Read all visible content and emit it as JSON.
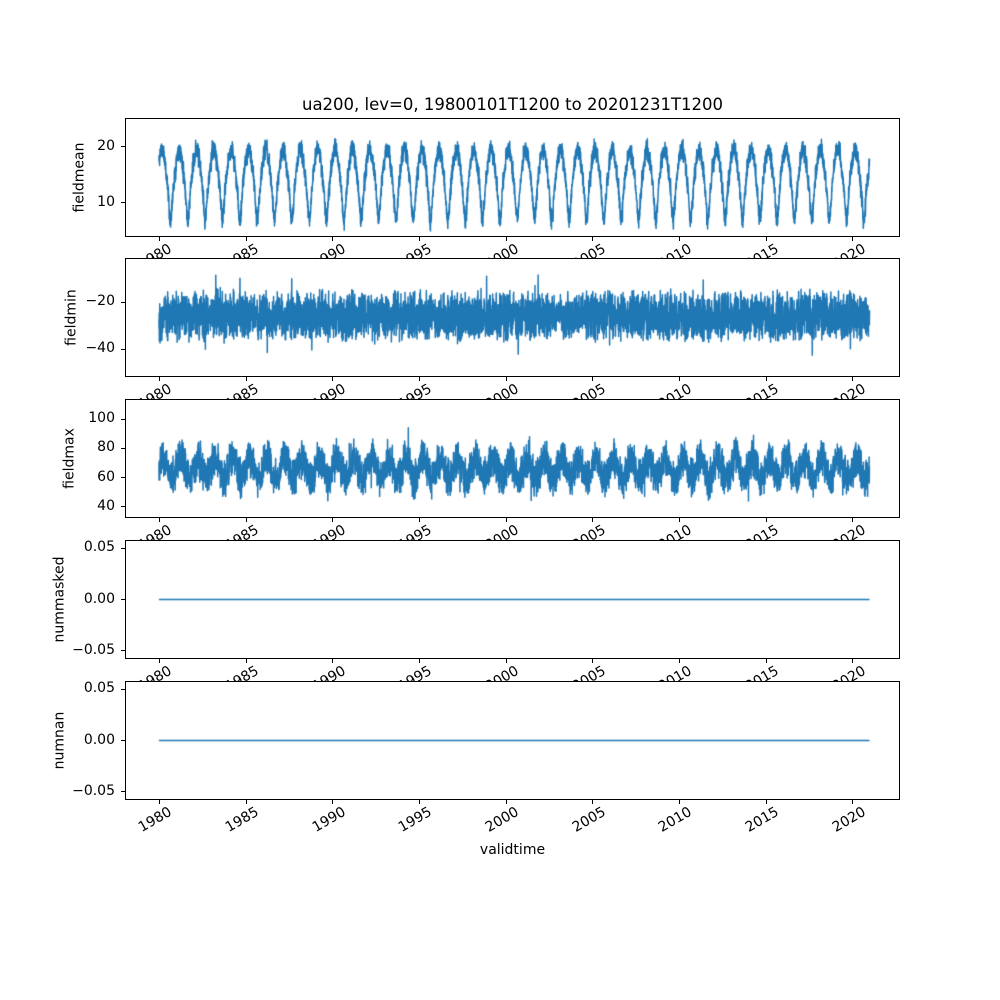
{
  "title": "ua200, lev=0, 19800101T1200 to 20201231T1200",
  "figure": {
    "background": "#ffffff",
    "axes_edge_color": "#000000",
    "line_color": "#1f77b4"
  },
  "x_axis": {
    "label": "validtime",
    "lim": [
      1978.1,
      2022.7
    ],
    "data_range": [
      1980.0,
      2021.0
    ],
    "tick_rotation_deg": 30,
    "ticks": [
      {
        "v": 1980,
        "label": "1980"
      },
      {
        "v": 1985,
        "label": "1985"
      },
      {
        "v": 1990,
        "label": "1990"
      },
      {
        "v": 1995,
        "label": "1995"
      },
      {
        "v": 2000,
        "label": "2000"
      },
      {
        "v": 2005,
        "label": "2005"
      },
      {
        "v": 2010,
        "label": "2010"
      },
      {
        "v": 2015,
        "label": "2015"
      },
      {
        "v": 2020,
        "label": "2020"
      }
    ]
  },
  "chart_data": [
    {
      "type": "line",
      "ylabel": "fieldmean",
      "ylim": [
        4.1,
        25.0
      ],
      "yticks": [
        {
          "v": 20,
          "label": "20"
        },
        {
          "v": 10,
          "label": "10"
        }
      ],
      "grid": false,
      "series": [
        {
          "name": "fieldmean",
          "color": "#1f77b4",
          "linewidth": 1.5,
          "observed": {
            "min": 5,
            "max": 24,
            "typical_peak": 19.5,
            "typical_trough": 7,
            "period_years": 1
          },
          "synthesis": {
            "kind": "seasonal",
            "base": 15.3,
            "amp": 4.3,
            "dip": 4.0,
            "noise": 1.25,
            "clip": [
              4.8,
              24.3
            ],
            "seed": 11,
            "points": 5200
          }
        }
      ]
    },
    {
      "type": "line",
      "ylabel": "fieldmin",
      "ylim": [
        -51.5,
        -1.5
      ],
      "yticks": [
        {
          "v": -20,
          "label": "−20"
        },
        {
          "v": -40,
          "label": "−40"
        }
      ],
      "grid": false,
      "series": [
        {
          "name": "fieldmin",
          "color": "#1f77b4",
          "linewidth": 1.5,
          "observed": {
            "min": -50,
            "max": -4,
            "typical_band": [
              -40,
              -13
            ]
          },
          "synthesis": {
            "kind": "noise",
            "base": -26,
            "spread": 12,
            "spike_prob": 0.02,
            "spike_mag": 11,
            "clip": [
              -50.5,
              -4.2
            ],
            "seed": 22,
            "points": 5200
          }
        }
      ]
    },
    {
      "type": "line",
      "ylabel": "fieldmax",
      "ylim": [
        33,
        113
      ],
      "yticks": [
        {
          "v": 100,
          "label": "100"
        },
        {
          "v": 80,
          "label": "80"
        },
        {
          "v": 60,
          "label": "60"
        },
        {
          "v": 40,
          "label": "40"
        }
      ],
      "grid": false,
      "series": [
        {
          "name": "fieldmax",
          "color": "#1f77b4",
          "linewidth": 1.5,
          "observed": {
            "min": 36,
            "max": 107,
            "typical_band": [
              45,
              95
            ]
          },
          "synthesis": {
            "kind": "noise_seasonal",
            "base": 66,
            "amp": 7,
            "spread": 15,
            "spike_prob": 0.02,
            "spike_mag": 12,
            "clip": [
              34.5,
              107
            ],
            "seed": 33,
            "points": 5200
          }
        }
      ]
    },
    {
      "type": "line",
      "ylabel": "nummasked",
      "ylim": [
        -0.057,
        0.057
      ],
      "yticks": [
        {
          "v": 0.05,
          "label": "0.05"
        },
        {
          "v": 0,
          "label": "0.00"
        },
        {
          "v": -0.05,
          "label": "−0.05"
        }
      ],
      "grid": false,
      "series": [
        {
          "name": "nummasked",
          "color": "#1f77b4",
          "linewidth": 1.5,
          "observed": {
            "constant_value": 0
          },
          "synthesis": {
            "kind": "constant",
            "value": 0,
            "points": 600
          }
        }
      ]
    },
    {
      "type": "line",
      "ylabel": "numnan",
      "ylim": [
        -0.057,
        0.057
      ],
      "yticks": [
        {
          "v": 0.05,
          "label": "0.05"
        },
        {
          "v": 0,
          "label": "0.00"
        },
        {
          "v": -0.05,
          "label": "−0.05"
        }
      ],
      "grid": false,
      "series": [
        {
          "name": "numnan",
          "color": "#1f77b4",
          "linewidth": 1.5,
          "observed": {
            "constant_value": 0
          },
          "synthesis": {
            "kind": "constant",
            "value": 0,
            "points": 600
          }
        }
      ]
    }
  ]
}
